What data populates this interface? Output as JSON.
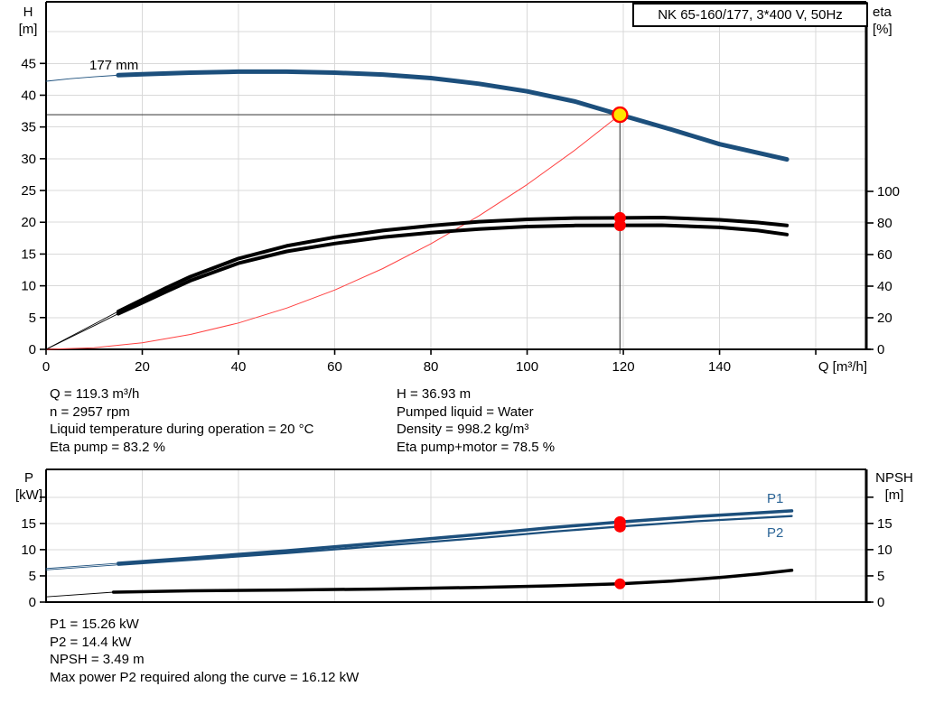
{
  "header": {
    "title_box": "NK 65-160/177, 3*400 V, 50Hz"
  },
  "labels": {
    "h_axis_line1": "H",
    "h_axis_line2": "[m]",
    "eta_axis_line1": "eta",
    "eta_axis_line2": "[%]",
    "q_axis": "Q [m³/h]",
    "pump_size": "177 mm",
    "p_axis_line1": "P",
    "p_axis_line2": "[kW]",
    "npsh_axis_line1": "NPSH",
    "npsh_axis_line2": "[m]",
    "p1": "P1",
    "p2": "P2"
  },
  "operating_point_info": {
    "left": [
      "Q = 119.3 m³/h",
      "n = 2957 rpm",
      "Liquid temperature during operation = 20 °C",
      "Eta pump = 83.2 %"
    ],
    "right": [
      "H = 36.93 m",
      "Pumped liquid = Water",
      "Density = 998.2 kg/m³",
      "Eta pump+motor = 78.5 %"
    ]
  },
  "power_info": [
    "P1 = 15.26 kW",
    "P2 = 14.4 kW",
    "NPSH = 3.49 m",
    "Max power P2 required along the curve = 16.12 kW"
  ],
  "colors": {
    "curve_blue": "#1c4f7c",
    "label_blue": "#2a6496",
    "red": "#ff0000",
    "system_red": "#ff4040",
    "duty_yellow": "#ffe500",
    "grid": "#d9d9d9",
    "crosshair": "#4a4a4a",
    "black": "#000000"
  },
  "chart_data": [
    {
      "id": "head-chart",
      "type": "line",
      "title": "NK 65-160/177, 3*400 V, 50Hz",
      "xlabel": "Q [m³/h]",
      "left_axis": {
        "label": "H [m]",
        "range": [
          0,
          54.7
        ],
        "ticks": [
          0,
          5,
          10,
          15,
          20,
          25,
          30,
          35,
          40,
          45
        ],
        "tick_labels": [
          0,
          5,
          10,
          15,
          20,
          25,
          30,
          35,
          40,
          45
        ]
      },
      "right_axis": {
        "label": "eta [%]",
        "range": [
          0,
          220
        ],
        "ticks": [
          0,
          20,
          40,
          60,
          80,
          100
        ],
        "tick_labels": [
          0,
          20,
          40,
          60,
          80,
          100
        ]
      },
      "x_axis": {
        "range": [
          0,
          170.5
        ],
        "ticks": [
          0,
          20,
          40,
          60,
          80,
          100,
          120,
          140,
          160
        ],
        "tick_labels": [
          0,
          20,
          40,
          60,
          80,
          100,
          120,
          140
        ]
      },
      "grid": {
        "x_values": [
          20,
          40,
          60,
          80,
          100,
          120,
          140,
          160
        ],
        "y_values": [
          5,
          10,
          15,
          20,
          25,
          30,
          35,
          40,
          45,
          50
        ]
      },
      "crosshair": {
        "x": 119.3,
        "y_left": 36.93
      },
      "series": [
        {
          "name": "system-curve",
          "axis": "left",
          "color": "#ff4040",
          "thin_width": 1,
          "thick_width": 1,
          "thick_from": null,
          "x": [
            0,
            10,
            20,
            30,
            40,
            50,
            60,
            70,
            80,
            90,
            100,
            110,
            119.3
          ],
          "y": [
            0,
            0.26,
            1.04,
            2.34,
            4.15,
            6.49,
            9.34,
            12.71,
            16.61,
            21.02,
            25.95,
            31.4,
            36.93
          ]
        },
        {
          "name": "eta-pump-curve",
          "axis": "right",
          "color": "#000000",
          "thin_width": 0.9,
          "thick_width": 4,
          "thick_from": 15,
          "x": [
            0,
            5,
            10,
            15,
            20,
            25,
            30,
            40,
            50,
            60,
            70,
            80,
            90,
            100,
            110,
            119.3,
            128,
            140,
            148,
            154
          ],
          "y": [
            0,
            8,
            16,
            24,
            31.5,
            39,
            46,
            57.5,
            65.5,
            71,
            75.2,
            78.3,
            80.8,
            82.3,
            83.1,
            83.2,
            83.4,
            82,
            80.3,
            78.4
          ]
        },
        {
          "name": "eta-pump-motor-curve",
          "axis": "right",
          "color": "#000000",
          "thin_width": 0.9,
          "thick_width": 4,
          "thick_from": 15,
          "x": [
            0,
            5,
            10,
            15,
            20,
            25,
            30,
            40,
            50,
            60,
            70,
            80,
            90,
            100,
            110,
            119.3,
            128,
            140,
            148,
            154
          ],
          "y": [
            0,
            7.5,
            15,
            22.5,
            29.5,
            36.5,
            43.5,
            54.5,
            62,
            67,
            71,
            73.9,
            76.2,
            77.7,
            78.4,
            78.5,
            78.6,
            77.2,
            75.2,
            72.7
          ]
        },
        {
          "name": "pump-curve-177mm",
          "axis": "left",
          "color": "#1c4f7c",
          "thin_width": 0.9,
          "thick_width": 5,
          "thick_from": 15,
          "x": [
            0,
            5,
            10,
            15,
            20,
            30,
            40,
            50,
            60,
            70,
            80,
            90,
            100,
            110,
            119.3,
            130,
            140,
            154
          ],
          "y": [
            42.2,
            42.6,
            42.9,
            43.15,
            43.3,
            43.55,
            43.7,
            43.7,
            43.55,
            43.25,
            42.7,
            41.8,
            40.6,
            39.0,
            36.93,
            34.6,
            32.3,
            29.9
          ]
        }
      ],
      "markers": [
        {
          "type": "dot",
          "x": 119.3,
          "axis": "right",
          "y": 83.2,
          "r": 6.5
        },
        {
          "type": "dot",
          "x": 119.3,
          "axis": "right",
          "y": 78.5,
          "r": 6.5
        },
        {
          "type": "duty",
          "x": 119.3,
          "axis": "left",
          "y": 36.93,
          "r": 8
        }
      ],
      "duty_values": {
        "Q": "119.3 m³/h",
        "H": "36.93 m",
        "eta_pump": "83.2 %",
        "eta_pump_motor": "78.5 %"
      }
    },
    {
      "id": "power-chart",
      "type": "line",
      "title": "",
      "xlabel": "Q [m³/h]",
      "left_axis": {
        "label": "P [kW]",
        "range": [
          0,
          25.3
        ],
        "ticks": [
          0,
          5,
          10,
          15,
          20
        ],
        "tick_labels": [
          0,
          5,
          10,
          15
        ]
      },
      "right_axis": {
        "label": "NPSH [m]",
        "range": [
          0,
          25.3
        ],
        "ticks": [
          0,
          5,
          10,
          15,
          20
        ],
        "tick_labels": [
          0,
          5,
          10,
          15
        ]
      },
      "x_axis": {
        "range": [
          0,
          170.5
        ],
        "ticks": [],
        "tick_labels": []
      },
      "grid": {
        "x_values": [
          20,
          40,
          60,
          80,
          100,
          120,
          140,
          160
        ],
        "y_values": [
          5,
          10,
          15,
          20
        ]
      },
      "crosshair": null,
      "series": [
        {
          "name": "p1-curve",
          "axis": "left",
          "color": "#1c4f7c",
          "thin_width": 0.9,
          "thick_width": 3.5,
          "thick_from": 15,
          "x": [
            0,
            15,
            30,
            50,
            70,
            90,
            105,
            119.3,
            135,
            145,
            155
          ],
          "y": [
            6.4,
            7.4,
            8.4,
            9.8,
            11.3,
            12.9,
            14.2,
            15.26,
            16.3,
            16.85,
            17.4
          ]
        },
        {
          "name": "p2-curve",
          "axis": "left",
          "color": "#1c4f7c",
          "thin_width": 0.9,
          "thick_width": 2.3,
          "thick_from": 15,
          "x": [
            0,
            15,
            30,
            50,
            70,
            90,
            105,
            119.3,
            135,
            145,
            155
          ],
          "y": [
            6.15,
            7.1,
            8.05,
            9.35,
            10.75,
            12.2,
            13.4,
            14.4,
            15.4,
            15.9,
            16.4
          ]
        },
        {
          "name": "npsh-curve",
          "axis": "right",
          "color": "#000000",
          "thin_width": 0.9,
          "thick_width": 3.5,
          "thick_from": 14,
          "x": [
            0,
            14,
            30,
            50,
            70,
            90,
            105,
            119.3,
            130,
            140,
            148,
            155
          ],
          "y": [
            1.0,
            1.9,
            2.15,
            2.3,
            2.5,
            2.8,
            3.1,
            3.49,
            4.0,
            4.7,
            5.35,
            6.05
          ]
        }
      ],
      "markers": [
        {
          "type": "dot",
          "x": 119.3,
          "axis": "left",
          "y": 15.26,
          "r": 6.5
        },
        {
          "type": "dot",
          "x": 119.3,
          "axis": "left",
          "y": 14.4,
          "r": 6.5
        },
        {
          "type": "dot",
          "x": 119.3,
          "axis": "right",
          "y": 3.49,
          "r": 6
        }
      ],
      "duty_values": {
        "P1": "15.26 kW",
        "P2": "14.4 kW",
        "NPSH": "3.49 m",
        "max_P2": "16.12 kW"
      }
    }
  ]
}
